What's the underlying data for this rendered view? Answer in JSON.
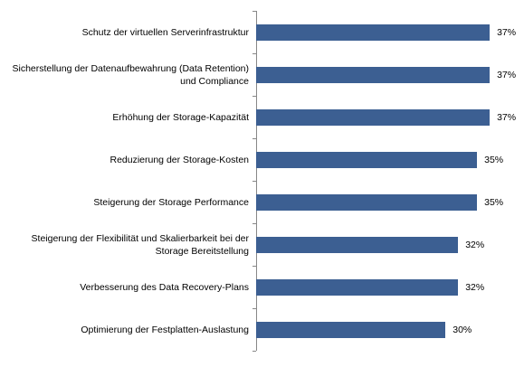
{
  "chart_data": {
    "type": "hbar",
    "categories": [
      "Schutz der virtuellen Serverinfrastruktur",
      "Sicherstellung der Datenaufbewahrung (Data Retention) und Compliance",
      "Erhöhung der Storage-Kapazität",
      "Reduzierung der Storage-Kosten",
      "Steigerung der Storage Performance",
      "Steigerung der Flexibilität und Skalierbarkeit bei der Storage Bereitstellung",
      "Verbesserung des Data Recovery-Plans",
      "Optimierung der Festplatten-Auslastung"
    ],
    "values": [
      37,
      37,
      37,
      35,
      35,
      32,
      32,
      30
    ],
    "value_labels": [
      "37%",
      "37%",
      "37%",
      "35%",
      "35%",
      "32%",
      "32%",
      "30%"
    ],
    "color": "#3c5f92",
    "xlim": [
      0,
      40
    ]
  }
}
